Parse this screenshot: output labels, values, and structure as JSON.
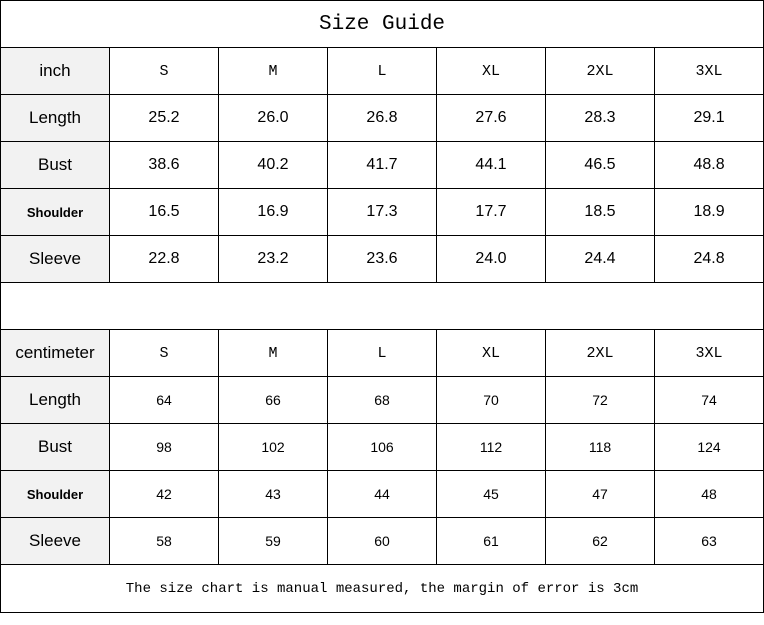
{
  "title": "Size Guide",
  "inch": {
    "unit": "inch",
    "sizes": [
      "S",
      "M",
      "L",
      "XL",
      "2XL",
      "3XL"
    ],
    "rows": [
      {
        "label": "Length",
        "values": [
          "25.2",
          "26.0",
          "26.8",
          "27.6",
          "28.3",
          "29.1"
        ]
      },
      {
        "label": "Bust",
        "values": [
          "38.6",
          "40.2",
          "41.7",
          "44.1",
          "46.5",
          "48.8"
        ]
      },
      {
        "label": "Shoulder",
        "values": [
          "16.5",
          "16.9",
          "17.3",
          "17.7",
          "18.5",
          "18.9"
        ]
      },
      {
        "label": "Sleeve",
        "values": [
          "22.8",
          "23.2",
          "23.6",
          "24.0",
          "24.4",
          "24.8"
        ]
      }
    ]
  },
  "cm": {
    "unit": "centimeter",
    "sizes": [
      "S",
      "M",
      "L",
      "XL",
      "2XL",
      "3XL"
    ],
    "rows": [
      {
        "label": "Length",
        "values": [
          "64",
          "66",
          "68",
          "70",
          "72",
          "74"
        ]
      },
      {
        "label": "Bust",
        "values": [
          "98",
          "102",
          "106",
          "112",
          "118",
          "124"
        ]
      },
      {
        "label": "Shoulder",
        "values": [
          "42",
          "43",
          "44",
          "45",
          "47",
          "48"
        ]
      },
      {
        "label": "Sleeve",
        "values": [
          "58",
          "59",
          "60",
          "61",
          "62",
          "63"
        ]
      }
    ]
  },
  "note": "The size chart is manual measured, the margin of error is 3cm"
}
